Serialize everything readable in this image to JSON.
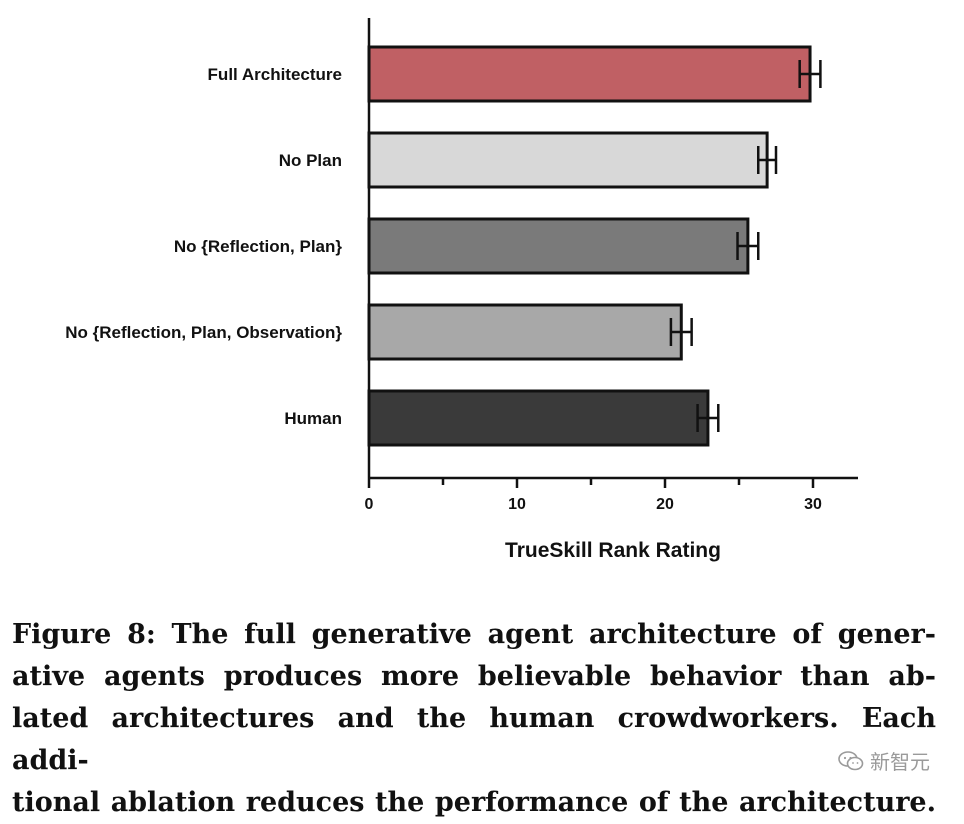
{
  "chart_data": {
    "type": "bar",
    "orientation": "horizontal",
    "categories": [
      "Full Architecture",
      "No Plan",
      "No {Reflection, Plan}",
      "No {Reflection, Plan, Observation}",
      "Human"
    ],
    "values": [
      29.8,
      26.9,
      25.6,
      21.1,
      22.9
    ],
    "errors": [
      0.7,
      0.6,
      0.7,
      0.7,
      0.7
    ],
    "colors": [
      "#c06064",
      "#d8d8d8",
      "#7a7a7a",
      "#a8a8a8",
      "#3a3a3a"
    ],
    "xlabel": "TrueSkill Rank Rating",
    "xlim": [
      0,
      33
    ],
    "xticks": [
      0,
      10,
      20,
      30
    ],
    "grid": false
  },
  "caption": {
    "line1": "Figure 8: The full generative agent architecture of gener-",
    "line2": "ative agents produces more believable behavior than ab-",
    "line3": "lated architectures and the human crowdworkers. Each addi-",
    "line4": "tional ablation reduces the performance of the architecture."
  },
  "watermark": {
    "text": "新智元",
    "icon": "wechat-logo-icon"
  }
}
